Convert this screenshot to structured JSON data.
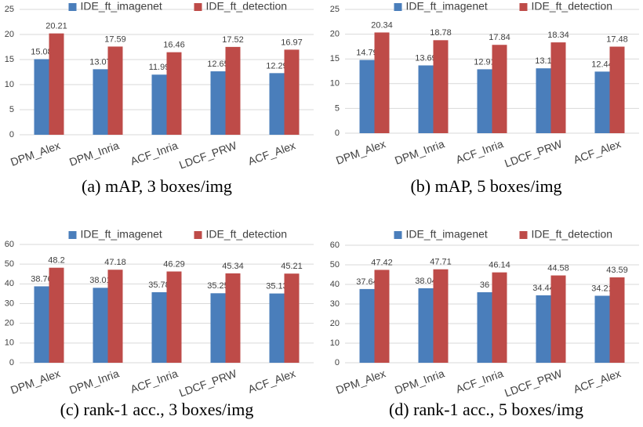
{
  "chart_data": [
    {
      "type": "bar",
      "title": "(a)  mAP, 3 boxes/img",
      "categories": [
        "DPM_Alex",
        "DPM_Inria",
        "ACF_Inria",
        "LDCF_PRW",
        "ACF_Alex"
      ],
      "series": [
        {
          "name": "IDE_ft_imagenet",
          "color": "#4a7ebb",
          "values": [
            15.08,
            13.07,
            11.99,
            12.65,
            12.29
          ]
        },
        {
          "name": "IDE_ft_detection",
          "color": "#be4b48",
          "values": [
            20.21,
            17.59,
            16.46,
            17.52,
            16.97
          ]
        }
      ],
      "ylim": [
        0,
        25
      ],
      "yticks": [
        0,
        5,
        10,
        15,
        20,
        25
      ],
      "grid": true
    },
    {
      "type": "bar",
      "title": "(b)  mAP, 5 boxes/img",
      "categories": [
        "DPM_Alex",
        "DPM_Inria",
        "ACF_Inria",
        "LDCF_PRW",
        "ACF_Alex"
      ],
      "series": [
        {
          "name": "IDE_ft_imagenet",
          "color": "#4a7ebb",
          "values": [
            14.79,
            13.69,
            12.91,
            13.1,
            12.44
          ]
        },
        {
          "name": "IDE_ft_detection",
          "color": "#be4b48",
          "values": [
            20.34,
            18.78,
            17.84,
            18.34,
            17.48
          ]
        }
      ],
      "ylim": [
        0,
        25
      ],
      "yticks": [
        0,
        5,
        10,
        15,
        20,
        25
      ],
      "grid": true
    },
    {
      "type": "bar",
      "title": "(c)  rank-1 acc., 3 boxes/img",
      "categories": [
        "DPM_Alex",
        "DPM_Inria",
        "ACF_Inria",
        "LDCF_PRW",
        "ACF_Alex"
      ],
      "series": [
        {
          "name": "IDE_ft_imagenet",
          "color": "#4a7ebb",
          "values": [
            38.76,
            38.01,
            35.78,
            35.25,
            35.13
          ]
        },
        {
          "name": "IDE_ft_detection",
          "color": "#be4b48",
          "values": [
            48.2,
            47.18,
            46.29,
            45.34,
            45.21
          ]
        }
      ],
      "ylim": [
        0,
        60
      ],
      "yticks": [
        0,
        10,
        20,
        30,
        40,
        50,
        60
      ],
      "grid": true
    },
    {
      "type": "bar",
      "title": "(d)  rank-1 acc., 5 boxes/img",
      "categories": [
        "DPM_Alex",
        "DPM_Inria",
        "ACF_Inria",
        "LDCF_PRW",
        "ACF_Alex"
      ],
      "series": [
        {
          "name": "IDE_ft_imagenet",
          "color": "#4a7ebb",
          "values": [
            37.64,
            38.04,
            36,
            34.44,
            34.21
          ]
        },
        {
          "name": "IDE_ft_detection",
          "color": "#be4b48",
          "values": [
            47.42,
            47.71,
            46.14,
            44.58,
            43.59
          ]
        }
      ],
      "ylim": [
        0,
        60
      ],
      "yticks": [
        0,
        10,
        20,
        30,
        40,
        50,
        60
      ],
      "grid": true
    }
  ]
}
